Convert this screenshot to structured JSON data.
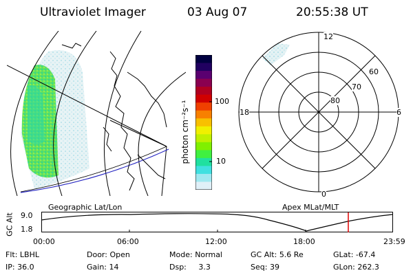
{
  "header": {
    "title": "Ultraviolet Imager",
    "date": "03 Aug 07",
    "time": "20:55:38 UT"
  },
  "colorbar": {
    "label": "photon cm⁻²s⁻¹",
    "ticks": [
      "100",
      "10"
    ],
    "colors": [
      "#000040",
      "#200060",
      "#5a0070",
      "#8a0050",
      "#b00020",
      "#d00000",
      "#f04000",
      "#f88000",
      "#f8c000",
      "#f0f000",
      "#c0f000",
      "#80f000",
      "#40f040",
      "#20e0a0",
      "#40e0e0",
      "#a0e8f0",
      "#e0f0f8"
    ]
  },
  "polar": {
    "labels": {
      "top": "12",
      "bottom": "0",
      "left": "18",
      "right": "6"
    },
    "lat_labels": [
      "80",
      "70",
      "60"
    ]
  },
  "timeline": {
    "left_title": "Geographic Lat/Lon",
    "right_title": "Apex MLat/MLT",
    "axis_label": "GC Alt",
    "y_ticks": [
      "9.0",
      "1.8"
    ],
    "x_ticks": [
      "00:00",
      "06:00",
      "12:00",
      "18:00",
      "23:59"
    ],
    "marker_color": "#e00000"
  },
  "info": {
    "row1": [
      {
        "label": "Flt:",
        "value": "LBHL"
      },
      {
        "label": "Door:",
        "value": "Open"
      },
      {
        "label": "Mode:",
        "value": "Normal"
      },
      {
        "label": "GC Alt:",
        "value": "5.6 Re"
      },
      {
        "label": "GLat:",
        "value": "-67.4"
      }
    ],
    "row2": [
      {
        "label": "IP:",
        "value": "36.0"
      },
      {
        "label": "Gain:",
        "value": "14"
      },
      {
        "label": "Dsp:",
        "value": "3.3"
      },
      {
        "label": "Seq:",
        "value": "39"
      },
      {
        "label": "GLon:",
        "value": "262.3"
      }
    ]
  }
}
